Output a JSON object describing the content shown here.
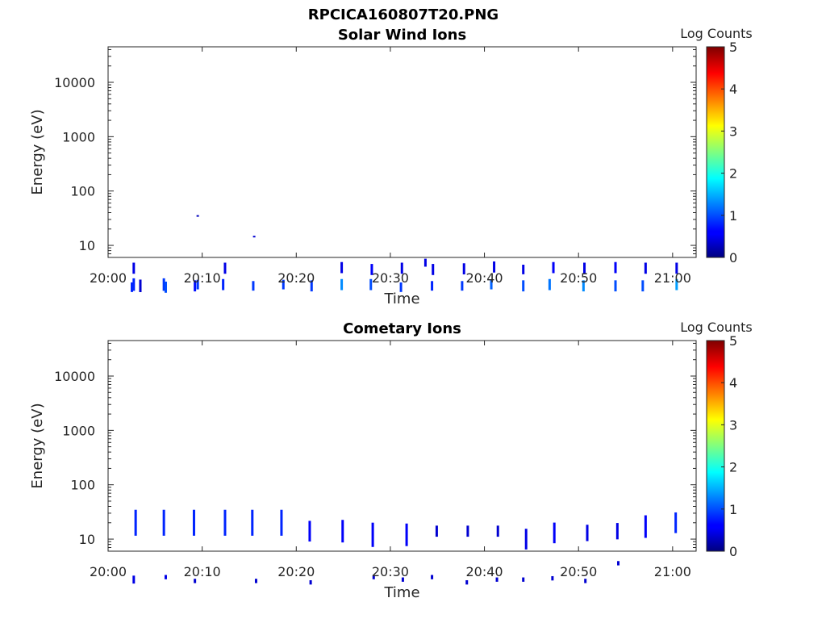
{
  "figure_title": "RPCICA160807T20.PNG",
  "chart_data": [
    {
      "type": "heatmap",
      "title": "Solar Wind Ions",
      "xlabel": "Time",
      "ylabel": "Energy (eV)",
      "x_ticks": [
        "20:00",
        "20:10",
        "20:20",
        "20:30",
        "20:40",
        "20:50",
        "21:00"
      ],
      "x_range_minutes": [
        0,
        62.5
      ],
      "y_ticks": [
        10,
        100,
        1000,
        10000
      ],
      "y_range": [
        6,
        45000
      ],
      "y_scale": "log",
      "colorbar": {
        "label": "Log Counts",
        "ticks": [
          0,
          1,
          2,
          3,
          4,
          5
        ],
        "range": [
          0,
          5
        ]
      },
      "cells": [
        [
          2.6,
          3.8,
          1.6,
          0.5
        ],
        [
          2.6,
          1.9,
          1.7,
          0.8
        ],
        [
          2.4,
          1.7,
          1.5,
          0.8
        ],
        [
          3.3,
          1.8,
          1.7,
          0.4
        ],
        [
          5.8,
          1.9,
          1.7,
          0.9
        ],
        [
          6.0,
          1.7,
          1.6,
          1.0
        ],
        [
          9.1,
          1.8,
          1.6,
          0.7
        ],
        [
          9.4,
          1.9,
          1.5,
          0.9
        ],
        [
          9.4,
          36,
          1.0,
          0.3
        ],
        [
          12.3,
          3.8,
          1.6,
          0.5
        ],
        [
          12.1,
          1.9,
          1.6,
          0.8
        ],
        [
          15.3,
          1.8,
          1.5,
          0.9
        ],
        [
          15.4,
          15,
          1.0,
          0.4
        ],
        [
          18.5,
          1.9,
          1.5,
          0.9
        ],
        [
          21.5,
          1.8,
          1.6,
          0.9
        ],
        [
          24.7,
          3.9,
          1.6,
          0.5
        ],
        [
          24.7,
          1.9,
          1.6,
          1.3
        ],
        [
          27.9,
          3.6,
          1.6,
          0.6
        ],
        [
          27.8,
          1.9,
          1.6,
          1.0
        ],
        [
          31.1,
          3.8,
          1.6,
          0.5
        ],
        [
          31.0,
          1.7,
          1.5,
          0.9
        ],
        [
          33.6,
          4.8,
          1.4,
          0.5
        ],
        [
          34.4,
          3.6,
          1.6,
          0.5
        ],
        [
          34.3,
          1.8,
          1.5,
          0.8
        ],
        [
          37.7,
          3.7,
          1.6,
          0.5
        ],
        [
          37.5,
          1.8,
          1.5,
          0.9
        ],
        [
          40.9,
          4.0,
          1.6,
          0.5
        ],
        [
          40.6,
          1.9,
          1.5,
          1.1
        ],
        [
          44.0,
          3.6,
          1.5,
          0.5
        ],
        [
          44.0,
          1.8,
          1.6,
          1.0
        ],
        [
          47.2,
          3.9,
          1.6,
          0.6
        ],
        [
          46.8,
          1.9,
          1.6,
          1.2
        ],
        [
          50.5,
          3.8,
          1.6,
          0.5
        ],
        [
          50.4,
          1.8,
          1.6,
          1.3
        ],
        [
          53.8,
          3.9,
          1.6,
          0.6
        ],
        [
          53.8,
          1.8,
          1.6,
          1.0
        ],
        [
          57.0,
          3.8,
          1.6,
          0.5
        ],
        [
          56.7,
          1.8,
          1.6,
          1.0
        ],
        [
          60.3,
          3.8,
          1.6,
          0.5
        ],
        [
          60.3,
          1.9,
          1.6,
          1.4
        ]
      ]
    },
    {
      "type": "heatmap",
      "title": "Cometary Ions",
      "xlabel": "Time",
      "ylabel": "Energy (eV)",
      "x_ticks": [
        "20:00",
        "20:10",
        "20:20",
        "20:30",
        "20:40",
        "20:50",
        "21:00"
      ],
      "x_range_minutes": [
        0,
        62.5
      ],
      "y_ticks": [
        10,
        100,
        1000,
        10000
      ],
      "y_range": [
        6,
        45000
      ],
      "y_scale": "log",
      "colorbar": {
        "label": "Log Counts",
        "ticks": [
          0,
          1,
          2,
          3,
          4,
          5
        ],
        "range": [
          0,
          5
        ]
      },
      "cells": [
        [
          2.6,
          1.8,
          1.4,
          0.5
        ],
        [
          6.0,
          2.0,
          1.2,
          0.5
        ],
        [
          9.1,
          1.7,
          1.2,
          0.4
        ],
        [
          15.6,
          1.7,
          1.2,
          0.4
        ],
        [
          21.4,
          1.6,
          1.2,
          0.4
        ],
        [
          28.1,
          2.0,
          1.2,
          0.4
        ],
        [
          31.2,
          1.8,
          1.2,
          0.4
        ],
        [
          34.3,
          2.0,
          1.2,
          0.4
        ],
        [
          38.0,
          1.6,
          1.2,
          0.4
        ],
        [
          41.2,
          1.8,
          1.2,
          0.4
        ],
        [
          44.0,
          1.8,
          1.2,
          0.4
        ],
        [
          47.1,
          1.9,
          1.2,
          0.4
        ],
        [
          50.6,
          1.7,
          1.2,
          0.4
        ],
        [
          54.1,
          3.6,
          1.2,
          0.4
        ],
        [
          2.8,
          20,
          3.0,
          0.8
        ],
        [
          5.8,
          20,
          3.0,
          0.8
        ],
        [
          9.0,
          20,
          3.0,
          0.8
        ],
        [
          12.3,
          20,
          3.0,
          0.8
        ],
        [
          15.2,
          20,
          3.0,
          0.8
        ],
        [
          18.3,
          20,
          3.0,
          0.8
        ],
        [
          21.3,
          14,
          2.4,
          0.6
        ],
        [
          24.8,
          14,
          2.6,
          0.6
        ],
        [
          28.0,
          12,
          2.8,
          0.6
        ],
        [
          31.6,
          12,
          2.6,
          0.6
        ],
        [
          34.8,
          14,
          1.6,
          0.4
        ],
        [
          38.1,
          14,
          1.6,
          0.4
        ],
        [
          41.3,
          14,
          1.6,
          0.4
        ],
        [
          44.3,
          10,
          2.4,
          0.5
        ],
        [
          47.3,
          13,
          2.4,
          0.6
        ],
        [
          50.8,
          13,
          2.0,
          0.5
        ],
        [
          54.0,
          14,
          2.0,
          0.5
        ],
        [
          57.0,
          17,
          2.6,
          0.6
        ],
        [
          60.2,
          20,
          2.4,
          0.8
        ]
      ]
    }
  ]
}
